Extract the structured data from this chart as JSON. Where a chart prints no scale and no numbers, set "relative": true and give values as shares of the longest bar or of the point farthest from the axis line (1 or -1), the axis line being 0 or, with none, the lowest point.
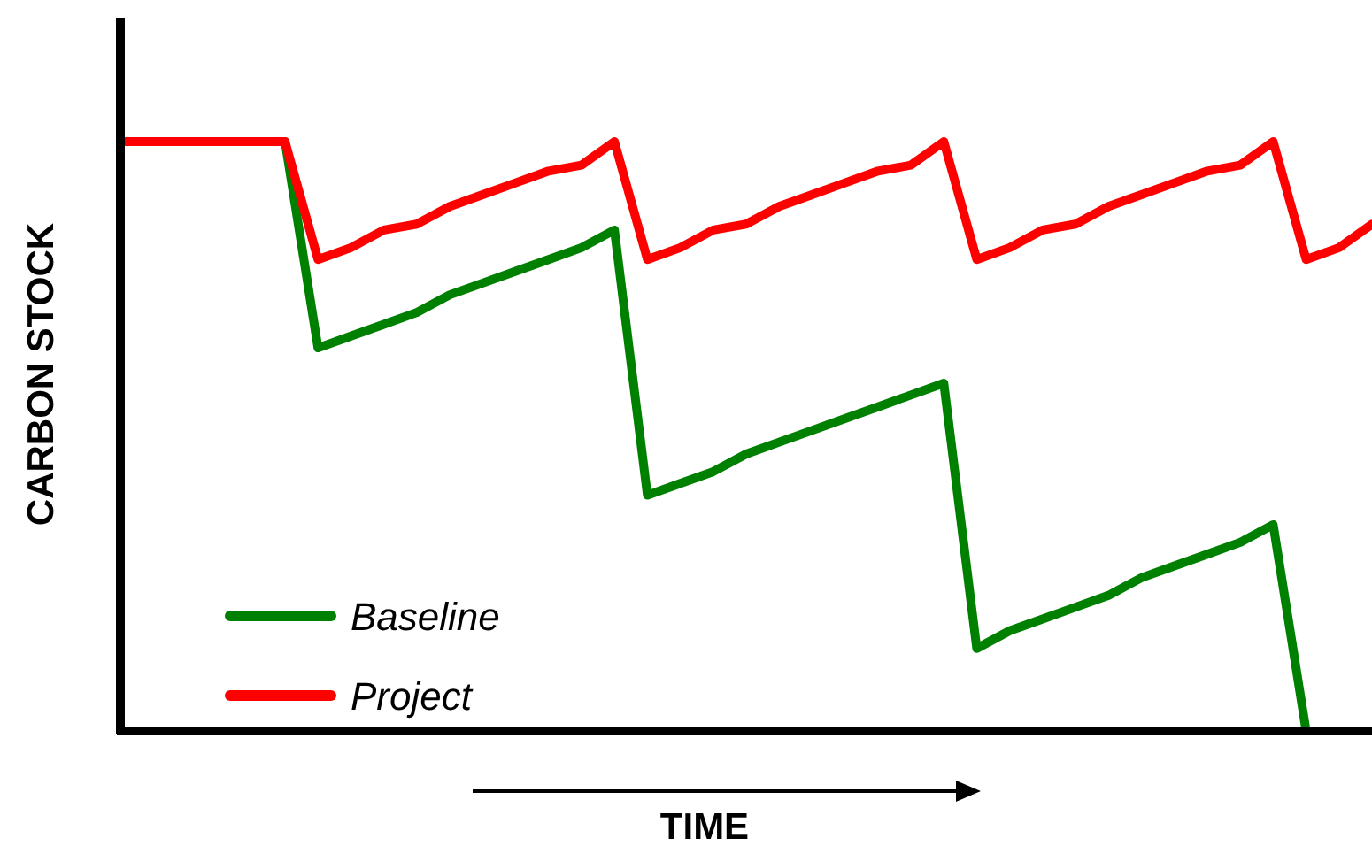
{
  "chart_data": {
    "type": "line",
    "relative": true,
    "xlabel": "TIME",
    "ylabel": "CARBON STOCK",
    "categories": [
      null,
      null,
      null,
      null,
      null,
      null,
      null,
      null,
      null,
      null,
      null,
      null,
      null,
      null,
      null,
      null,
      null,
      null,
      null,
      null,
      null,
      null,
      null,
      null,
      null,
      null,
      null,
      null,
      null,
      null,
      null,
      null,
      null,
      null,
      null,
      null,
      null,
      null,
      null
    ],
    "series": [
      {
        "name": "Baseline",
        "color": "#008000",
        "values": [
          null,
          null,
          null,
          null,
          null,
          1,
          0.65,
          0.67,
          0.69,
          0.71,
          0.74,
          0.76,
          0.78,
          0.8,
          0.82,
          0.85,
          0.4,
          0.42,
          0.44,
          0.47,
          0.49,
          0.51,
          0.53,
          0.55,
          0.57,
          0.59,
          0.14,
          0.17,
          0.19,
          0.21,
          0.23,
          0.26,
          0.28,
          0.3,
          0.32,
          0.35,
          0,
          0,
          0
        ]
      },
      {
        "name": "Project",
        "color": "#ff0000",
        "values": [
          1,
          1,
          1,
          1,
          1,
          1,
          0.8,
          0.82,
          0.85,
          0.86,
          0.89,
          0.91,
          0.93,
          0.95,
          0.96,
          1,
          0.8,
          0.82,
          0.85,
          0.86,
          0.89,
          0.91,
          0.93,
          0.95,
          0.96,
          1,
          0.8,
          0.82,
          0.85,
          0.86,
          0.89,
          0.91,
          0.93,
          0.95,
          0.96,
          1,
          0.8,
          0.82,
          0.86
        ]
      }
    ],
    "legend": "bottom left",
    "marker": "none",
    "line_style": "solid"
  }
}
